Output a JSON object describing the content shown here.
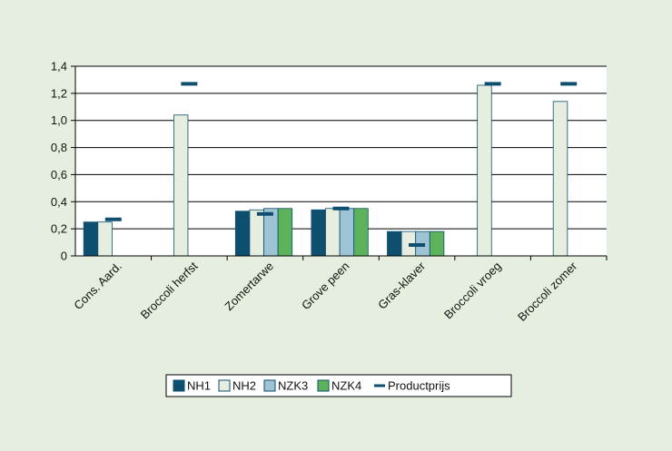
{
  "colors": {
    "background": "#e6efdf",
    "plot_area": "#ffffff",
    "NH1": "#0e4e6e",
    "NH2": "#e6efdf",
    "NZK3": "#9ec3d4",
    "NZK4": "#5cb35b",
    "Productprijs": "#0e4e6e",
    "axis": "#000000",
    "grid": "#000000"
  },
  "chart_data": {
    "type": "bar",
    "title": "",
    "xlabel": "",
    "ylabel": "",
    "ylim": [
      0,
      1.4
    ],
    "yticks": [
      "0",
      "0,2",
      "0,4",
      "0,6",
      "0,8",
      "1,0",
      "1,2",
      "1,4"
    ],
    "ytick_values": [
      0,
      0.2,
      0.4,
      0.6,
      0.8,
      1.0,
      1.2,
      1.4
    ],
    "grid": true,
    "legend_position": "bottom",
    "categories": [
      "Cons. Aard.",
      "Broccoli herfst",
      "Zomertarwe",
      "Grove peen",
      "Gras-klaver",
      "Broccoli vroeg",
      "Broccoli zomer"
    ],
    "series": [
      {
        "name": "NH1",
        "kind": "bar",
        "values": [
          0.25,
          null,
          0.33,
          0.34,
          0.18,
          null,
          null
        ]
      },
      {
        "name": "NH2",
        "kind": "bar",
        "values": [
          0.25,
          1.04,
          0.34,
          0.35,
          0.18,
          1.26,
          1.14
        ]
      },
      {
        "name": "NZK3",
        "kind": "bar",
        "values": [
          null,
          null,
          0.35,
          0.35,
          0.18,
          null,
          null
        ]
      },
      {
        "name": "NZK4",
        "kind": "bar",
        "values": [
          null,
          null,
          0.35,
          0.35,
          0.18,
          null,
          null
        ]
      },
      {
        "name": "Productprijs",
        "kind": "marker",
        "values": [
          0.27,
          1.27,
          0.31,
          0.35,
          0.08,
          1.27,
          1.27
        ]
      }
    ]
  }
}
